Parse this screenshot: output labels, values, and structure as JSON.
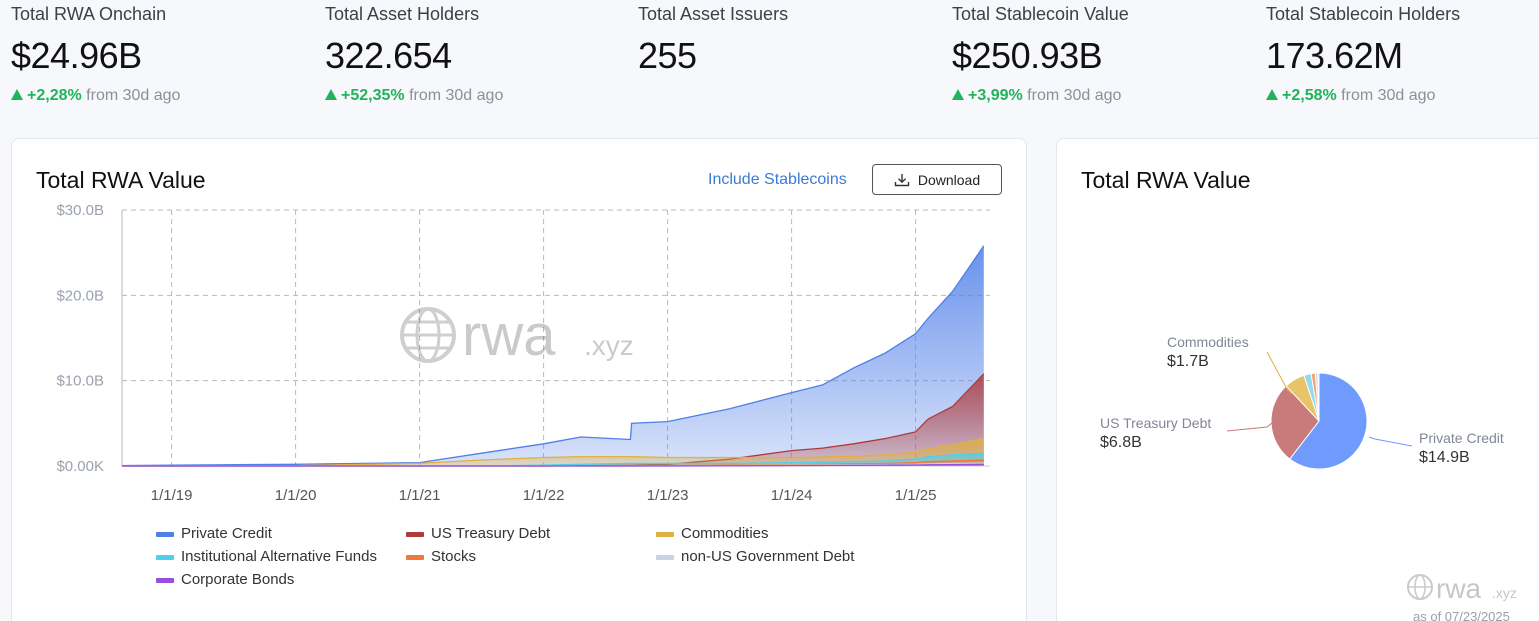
{
  "stats": [
    {
      "label": "Total RWA Onchain",
      "value": "$24.96B",
      "change": "+2,28%",
      "suffix": "from 30d ago"
    },
    {
      "label": "Total Asset Holders",
      "value": "322.654",
      "change": "+52,35%",
      "suffix": "from 30d ago"
    },
    {
      "label": "Total Asset Issuers",
      "value": "255",
      "change": null,
      "suffix": null
    },
    {
      "label": "Total Stablecoin Value",
      "value": "$250.93B",
      "change": "+3,99%",
      "suffix": "from 30d ago"
    },
    {
      "label": "Total Stablecoin Holders",
      "value": "173.62M",
      "change": "+2,58%",
      "suffix": "from 30d ago"
    }
  ],
  "area_card": {
    "title": "Total RWA Value",
    "include_link": "Include Stablecoins",
    "download_label": "Download",
    "watermark": "rwa",
    "watermark_suffix": ".xyz"
  },
  "pie_card": {
    "title": "Total RWA Value",
    "labels": [
      {
        "name": "Commodities",
        "value": "$1.7B"
      },
      {
        "name": "US Treasury Debt",
        "value": "$6.8B"
      },
      {
        "name": "Private Credit",
        "value": "$14.9B"
      }
    ],
    "watermark": "rwa",
    "watermark_suffix": ".xyz",
    "as_of": "as of 07/23/2025"
  },
  "legend": [
    {
      "name": "Private Credit",
      "color": "#4f7fe8"
    },
    {
      "name": "US Treasury Debt",
      "color": "#b03a3a"
    },
    {
      "name": "Commodities",
      "color": "#e0b040"
    },
    {
      "name": "Institutional Alternative Funds",
      "color": "#4dd0e8"
    },
    {
      "name": "Stocks",
      "color": "#f07838"
    },
    {
      "name": "non-US Government Debt",
      "color": "#c8d4e6"
    },
    {
      "name": "Corporate Bonds",
      "color": "#9a4de0"
    }
  ],
  "chart_data": [
    {
      "type": "area",
      "title": "Total RWA Value",
      "x_ticks": [
        "1/1/19",
        "1/1/20",
        "1/1/21",
        "1/1/22",
        "1/1/23",
        "1/1/24",
        "1/1/25"
      ],
      "y_ticks": [
        "$0.00K",
        "$10.0B",
        "$20.0B",
        "$30.0B"
      ],
      "ylim": [
        0,
        30
      ],
      "y_unit": "B USD",
      "grid": true,
      "stacked": false,
      "x": [
        2018.6,
        2019.0,
        2020.0,
        2021.0,
        2021.5,
        2022.0,
        2022.3,
        2022.7,
        2022.71,
        2023.0,
        2023.5,
        2024.0,
        2024.25,
        2024.5,
        2024.75,
        2025.0,
        2025.1,
        2025.3,
        2025.55
      ],
      "series": [
        {
          "name": "Private Credit",
          "color": "#4f7fe8",
          "values": [
            0.05,
            0.1,
            0.2,
            0.4,
            1.5,
            2.6,
            3.4,
            3.1,
            5.0,
            5.2,
            6.7,
            8.6,
            9.5,
            11.5,
            13.2,
            15.5,
            17.3,
            20.5,
            25.8
          ]
        },
        {
          "name": "US Treasury Debt",
          "color": "#b03a3a",
          "values": [
            0.0,
            0.0,
            0.0,
            0.0,
            0.0,
            0.0,
            0.05,
            0.1,
            0.1,
            0.2,
            0.8,
            1.8,
            2.1,
            2.6,
            3.2,
            4.0,
            5.5,
            7.0,
            10.8
          ]
        },
        {
          "name": "Commodities",
          "color": "#e0b040",
          "values": [
            0.0,
            0.0,
            0.05,
            0.3,
            0.7,
            1.0,
            1.1,
            1.1,
            1.1,
            1.0,
            1.0,
            1.0,
            1.05,
            1.15,
            1.3,
            1.6,
            2.0,
            2.5,
            3.2
          ]
        },
        {
          "name": "Institutional Alternative Funds",
          "color": "#4dd0e8",
          "values": [
            0.0,
            0.0,
            0.0,
            0.0,
            0.0,
            0.1,
            0.2,
            0.3,
            0.3,
            0.3,
            0.3,
            0.4,
            0.45,
            0.5,
            0.6,
            0.8,
            1.1,
            1.3,
            1.5
          ]
        },
        {
          "name": "Stocks",
          "color": "#f07838",
          "values": [
            0.0,
            0.0,
            0.0,
            0.0,
            0.0,
            0.0,
            0.0,
            0.0,
            0.0,
            0.05,
            0.1,
            0.15,
            0.2,
            0.25,
            0.3,
            0.4,
            0.5,
            0.6,
            0.7
          ]
        },
        {
          "name": "non-US Government Debt",
          "color": "#c8d4e6",
          "values": [
            0.0,
            0.0,
            0.0,
            0.0,
            0.0,
            0.0,
            0.0,
            0.0,
            0.0,
            0.0,
            0.05,
            0.1,
            0.12,
            0.15,
            0.18,
            0.2,
            0.25,
            0.3,
            0.35
          ]
        },
        {
          "name": "Corporate Bonds",
          "color": "#9a4de0",
          "values": [
            0.0,
            0.0,
            0.0,
            0.0,
            0.0,
            0.0,
            0.0,
            0.0,
            0.0,
            0.0,
            0.02,
            0.05,
            0.06,
            0.08,
            0.1,
            0.12,
            0.14,
            0.16,
            0.2
          ]
        }
      ]
    },
    {
      "type": "pie",
      "title": "Total RWA Value",
      "slices": [
        {
          "name": "Private Credit",
          "value": 14.9,
          "label": "$14.9B",
          "color": "#6f9bff"
        },
        {
          "name": "US Treasury Debt",
          "value": 6.8,
          "label": "$6.8B",
          "color": "#c97b7b"
        },
        {
          "name": "Commodities",
          "value": 1.7,
          "label": "$1.7B",
          "color": "#e8c36a"
        },
        {
          "name": "Institutional Alternative Funds",
          "value": 0.6,
          "color": "#8fdcf0"
        },
        {
          "name": "Stocks",
          "value": 0.35,
          "color": "#f4a07a"
        },
        {
          "name": "non-US Government Debt",
          "value": 0.2,
          "color": "#c9d3e2"
        },
        {
          "name": "Corporate Bonds",
          "value": 0.1,
          "color": "#b788ea"
        }
      ]
    }
  ]
}
